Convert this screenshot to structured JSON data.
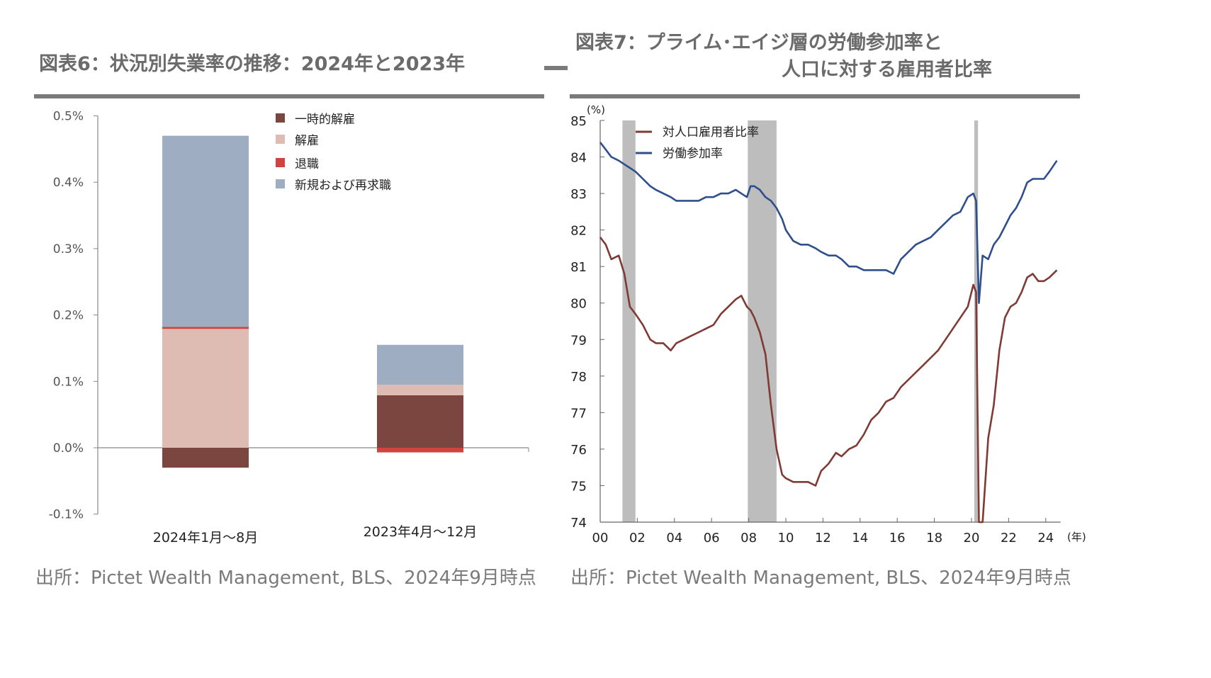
{
  "left": {
    "title": "図表6：状況別失業率の推移：2024年と2023年",
    "source": "出所：Pictet Wealth Management, BLS、2024年9月時点"
  },
  "right": {
    "title_line1": "図表7：プライム･エイジ層の労働参加率と",
    "title_line2": "人口に対する雇用者比率",
    "source": "出所：Pictet Wealth Management, BLS、2024年9月時点"
  },
  "colors": {
    "temp_layoff": "#7b463f",
    "layoff": "#dfbcb3",
    "retire": "#d0443f",
    "new_entrant": "#9eadc2",
    "epop": "#7f3b33",
    "lfpr": "#2e4f8c",
    "recession": "#bdbdbd"
  },
  "chart_data": [
    {
      "type": "bar",
      "stacked": true,
      "categories": [
        "2024年1月～8月",
        "2023年4月～12月"
      ],
      "series": [
        {
          "name": "一時的解雇",
          "values": [
            -0.03,
            0.079
          ]
        },
        {
          "name": "解雇",
          "values": [
            0.179,
            0.016
          ]
        },
        {
          "name": "退職",
          "values": [
            0.003,
            -0.007
          ]
        },
        {
          "name": "新規および再求職",
          "values": [
            0.288,
            0.06
          ]
        }
      ],
      "ylim": [
        -0.1,
        0.5
      ],
      "yticks": [
        "-0.1%",
        "0.0%",
        "0.1%",
        "0.2%",
        "0.3%",
        "0.4%",
        "0.5%"
      ],
      "legend_position": "top-right",
      "grid": false
    },
    {
      "type": "line",
      "ylabel": "(%)",
      "xunit": "(年)",
      "ylim": [
        74,
        85
      ],
      "xlim": [
        2000,
        2024.8
      ],
      "xticks": [
        "00",
        "02",
        "04",
        "06",
        "08",
        "10",
        "12",
        "14",
        "16",
        "18",
        "20",
        "22",
        "24"
      ],
      "yticks": [
        "74",
        "75",
        "76",
        "77",
        "78",
        "79",
        "80",
        "81",
        "82",
        "83",
        "84",
        "85"
      ],
      "recessions": [
        [
          2001.2,
          2001.9
        ],
        [
          2007.95,
          2009.5
        ],
        [
          2020.15,
          2020.35
        ]
      ],
      "legend_position": "top-left",
      "grid": false,
      "series": [
        {
          "name": "対人口雇用者比率",
          "x": [
            2000.0,
            2000.3,
            2000.6,
            2001.0,
            2001.3,
            2001.6,
            2001.9,
            2002.3,
            2002.7,
            2003.0,
            2003.4,
            2003.8,
            2004.1,
            2004.5,
            2004.9,
            2005.3,
            2005.7,
            2006.1,
            2006.5,
            2006.9,
            2007.3,
            2007.6,
            2007.9,
            2008.1,
            2008.3,
            2008.6,
            2008.9,
            2009.2,
            2009.5,
            2009.8,
            2010.0,
            2010.4,
            2010.8,
            2011.2,
            2011.6,
            2011.9,
            2012.3,
            2012.7,
            2013.0,
            2013.4,
            2013.8,
            2014.2,
            2014.6,
            2015.0,
            2015.4,
            2015.8,
            2016.2,
            2016.6,
            2017.0,
            2017.4,
            2017.8,
            2018.2,
            2018.6,
            2019.0,
            2019.4,
            2019.8,
            2020.1,
            2020.25,
            2020.4,
            2020.6,
            2020.9,
            2021.2,
            2021.5,
            2021.8,
            2022.1,
            2022.4,
            2022.7,
            2023.0,
            2023.3,
            2023.6,
            2023.9,
            2024.2,
            2024.6
          ],
          "y": [
            81.8,
            81.6,
            81.2,
            81.3,
            80.8,
            79.9,
            79.7,
            79.4,
            79.0,
            78.9,
            78.9,
            78.7,
            78.9,
            79.0,
            79.1,
            79.2,
            79.3,
            79.4,
            79.7,
            79.9,
            80.1,
            80.2,
            79.9,
            79.8,
            79.6,
            79.2,
            78.6,
            77.2,
            76.0,
            75.3,
            75.2,
            75.1,
            75.1,
            75.1,
            75.0,
            75.4,
            75.6,
            75.9,
            75.8,
            76.0,
            76.1,
            76.4,
            76.8,
            77.0,
            77.3,
            77.4,
            77.7,
            77.9,
            78.1,
            78.3,
            78.5,
            78.7,
            79.0,
            79.3,
            79.6,
            79.9,
            80.5,
            80.3,
            74.0,
            74.0,
            76.3,
            77.2,
            78.7,
            79.6,
            79.9,
            80.0,
            80.3,
            80.7,
            80.8,
            80.6,
            80.6,
            80.7,
            80.9
          ]
        },
        {
          "name": "労働参加率",
          "x": [
            2000.0,
            2000.3,
            2000.6,
            2001.0,
            2001.3,
            2001.6,
            2001.9,
            2002.3,
            2002.7,
            2003.0,
            2003.4,
            2003.8,
            2004.1,
            2004.5,
            2004.9,
            2005.3,
            2005.7,
            2006.1,
            2006.5,
            2006.9,
            2007.3,
            2007.6,
            2007.9,
            2008.1,
            2008.3,
            2008.6,
            2008.9,
            2009.2,
            2009.5,
            2009.8,
            2010.0,
            2010.4,
            2010.8,
            2011.2,
            2011.6,
            2011.9,
            2012.3,
            2012.7,
            2013.0,
            2013.4,
            2013.8,
            2014.2,
            2014.6,
            2015.0,
            2015.4,
            2015.8,
            2016.2,
            2016.6,
            2017.0,
            2017.4,
            2017.8,
            2018.2,
            2018.6,
            2019.0,
            2019.4,
            2019.8,
            2020.1,
            2020.25,
            2020.4,
            2020.6,
            2020.9,
            2021.2,
            2021.5,
            2021.8,
            2022.1,
            2022.4,
            2022.7,
            2023.0,
            2023.3,
            2023.6,
            2023.9,
            2024.2,
            2024.6
          ],
          "y": [
            84.4,
            84.2,
            84.0,
            83.9,
            83.8,
            83.7,
            83.6,
            83.4,
            83.2,
            83.1,
            83.0,
            82.9,
            82.8,
            82.8,
            82.8,
            82.8,
            82.9,
            82.9,
            83.0,
            83.0,
            83.1,
            83.0,
            82.9,
            83.2,
            83.2,
            83.1,
            82.9,
            82.8,
            82.6,
            82.3,
            82.0,
            81.7,
            81.6,
            81.6,
            81.5,
            81.4,
            81.3,
            81.3,
            81.2,
            81.0,
            81.0,
            80.9,
            80.9,
            80.9,
            80.9,
            80.8,
            81.2,
            81.4,
            81.6,
            81.7,
            81.8,
            82.0,
            82.2,
            82.4,
            82.5,
            82.9,
            83.0,
            82.8,
            80.0,
            81.3,
            81.2,
            81.6,
            81.8,
            82.1,
            82.4,
            82.6,
            82.9,
            83.3,
            83.4,
            83.4,
            83.4,
            83.6,
            83.9
          ]
        }
      ]
    }
  ]
}
